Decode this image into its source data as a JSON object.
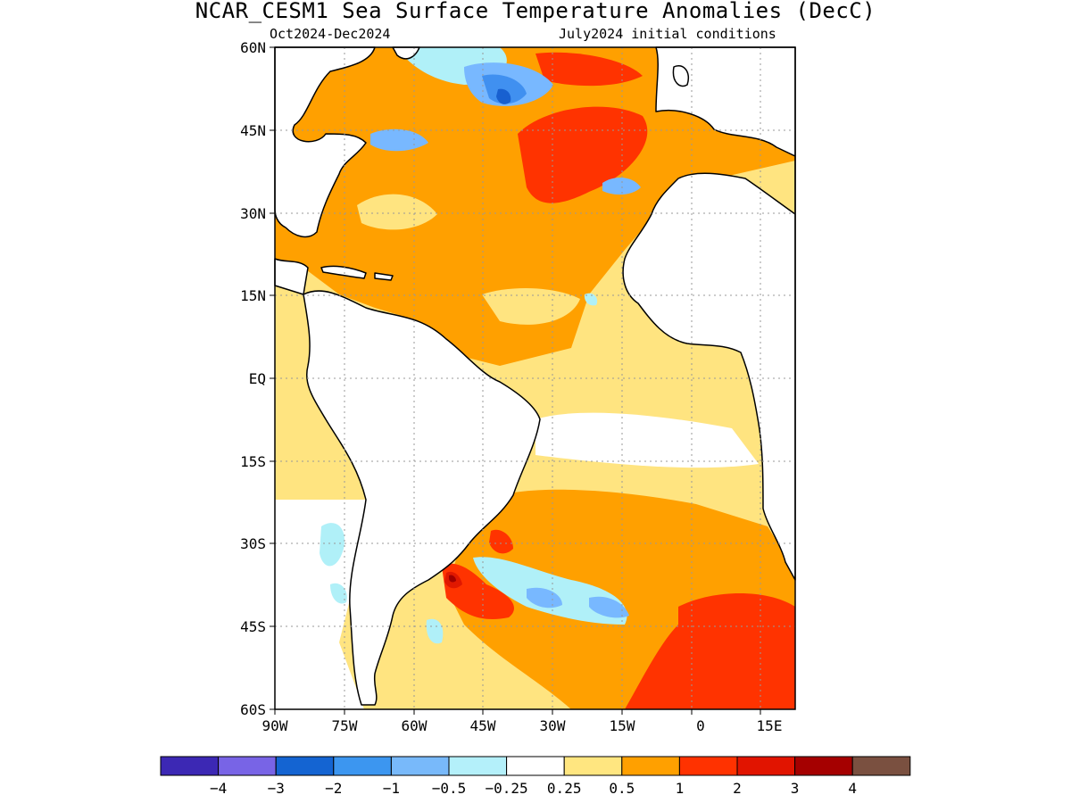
{
  "title": "NCAR_CESM1 Sea Surface Temperature Anomalies (DecC)",
  "subtitle_left": "Oct2024-Dec2024",
  "subtitle_right": "July2024 initial conditions",
  "map": {
    "lat_labels": [
      "60N",
      "45N",
      "30N",
      "15N",
      "EQ",
      "15S",
      "30S",
      "45S",
      "60S"
    ],
    "lon_labels": [
      "90W",
      "75W",
      "60W",
      "45W",
      "30W",
      "15W",
      "0",
      "15E"
    ],
    "colors": {
      "warm_light": "#ffe480",
      "warm": "#ffa000",
      "warm_strong": "#ff3300",
      "warm_stronger": "#e01800",
      "warm_extreme": "#a00000",
      "cool_light": "#b0f0f8",
      "cool": "#78b8ff",
      "cool_mid": "#4090f0",
      "cool_strong": "#1860d0",
      "land_outline": "#000000"
    }
  },
  "colorbar": {
    "colors": [
      "#3c28b4",
      "#7864e6",
      "#1464d2",
      "#3c96f0",
      "#78b9fa",
      "#b4f0fa",
      "#ffffff",
      "#ffe680",
      "#ffa000",
      "#ff3200",
      "#e11400",
      "#a50000",
      "#7a5040"
    ],
    "labels": [
      "−4",
      "−3",
      "−2",
      "−1",
      "−0.5",
      "−0.25",
      "0.25",
      "0.5",
      "1",
      "2",
      "3",
      "4"
    ]
  }
}
